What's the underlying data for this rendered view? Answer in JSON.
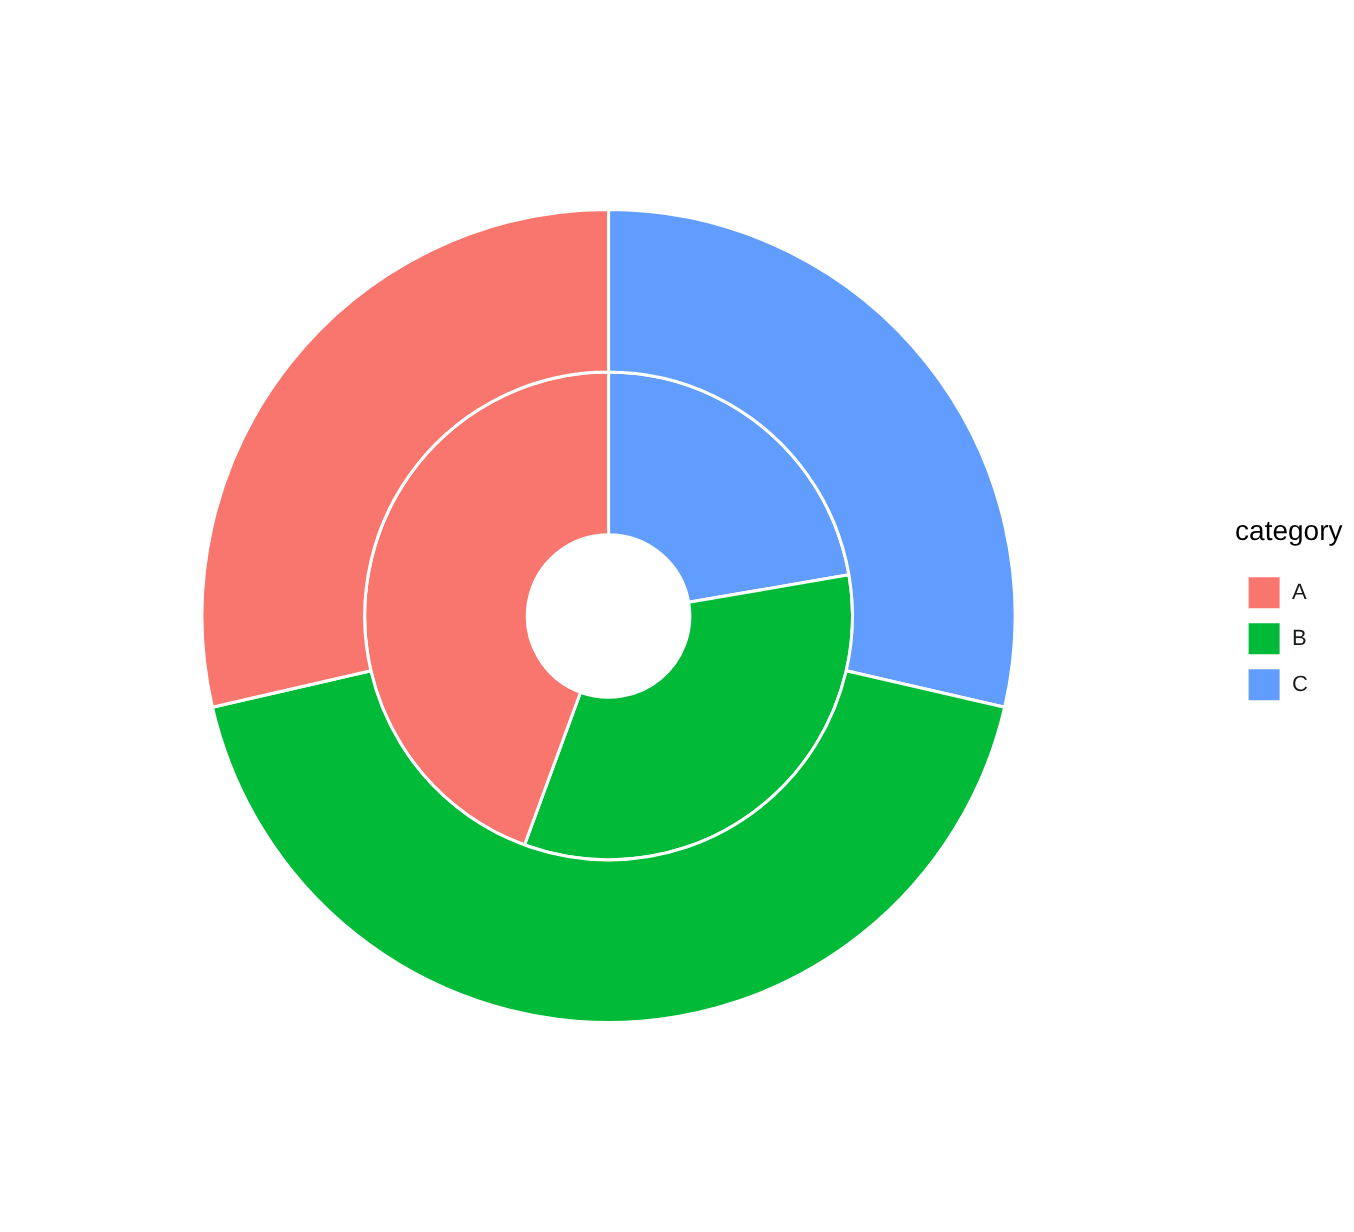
{
  "chart_data": {
    "type": "donut",
    "categories": [
      "A",
      "B",
      "C"
    ],
    "colors": [
      "#f8766d",
      "#00ba38",
      "#619cff"
    ],
    "series": [
      {
        "values": [
          28.6,
          42.8,
          28.6
        ]
      },
      {
        "values": [
          44.4,
          33.3,
          22.3
        ]
      }
    ],
    "legend": "right",
    "legend_title": "category"
  }
}
